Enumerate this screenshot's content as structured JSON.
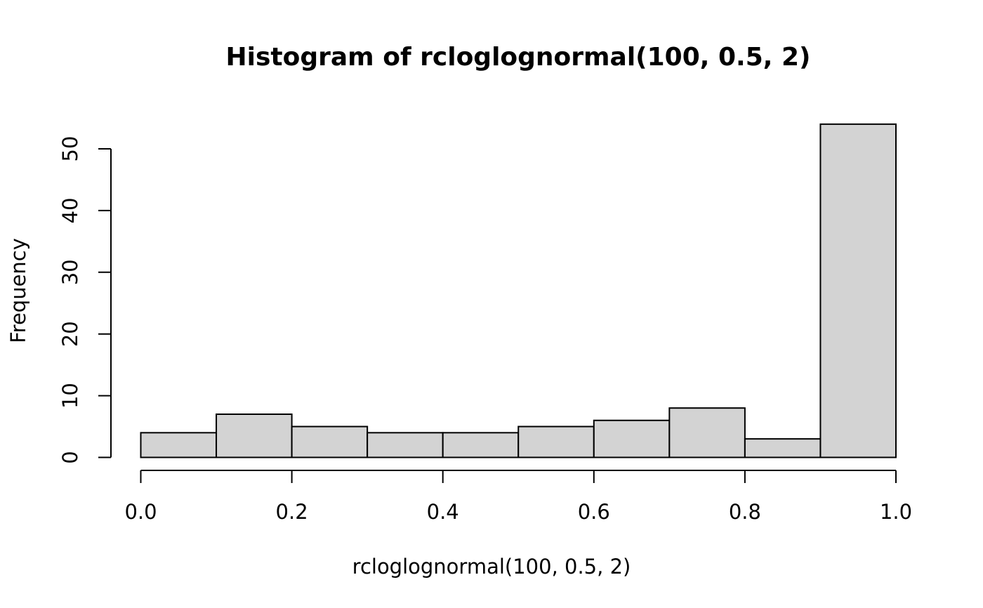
{
  "chart_data": {
    "type": "bar",
    "title": "Histogram of rcloglognormal(100, 0.5, 2)",
    "xlabel": "rcloglognormal(100, 0.5, 2)",
    "ylabel": "Frequency",
    "bin_edges": [
      0.0,
      0.1,
      0.2,
      0.3,
      0.4,
      0.5,
      0.6,
      0.7,
      0.8,
      0.9,
      1.0
    ],
    "values": [
      4,
      7,
      5,
      4,
      4,
      5,
      6,
      8,
      3,
      54
    ],
    "xlim": [
      0.0,
      1.0
    ],
    "ylim": [
      0,
      54
    ],
    "x_ticks": [
      0.0,
      0.2,
      0.4,
      0.6,
      0.8,
      1.0
    ],
    "x_tick_labels": [
      "0.0",
      "0.2",
      "0.4",
      "0.6",
      "0.8",
      "1.0"
    ],
    "y_ticks": [
      0,
      10,
      20,
      30,
      40,
      50
    ],
    "y_tick_labels": [
      "0",
      "10",
      "20",
      "30",
      "40",
      "50"
    ],
    "grid": false,
    "colors": {
      "bar_fill": "#d3d3d3",
      "bar_stroke": "#000000"
    }
  }
}
